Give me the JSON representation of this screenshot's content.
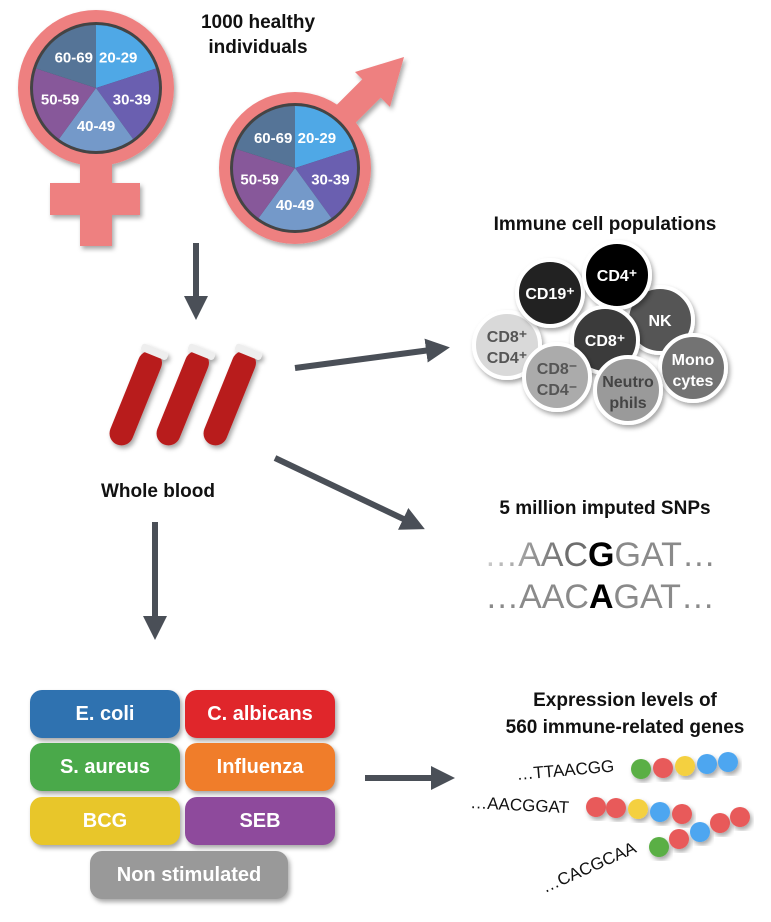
{
  "cohort": {
    "title_line1": "1000 healthy",
    "title_line2": "individuals",
    "age_groups": [
      "20-29",
      "30-39",
      "40-49",
      "50-59",
      "60-69"
    ],
    "age_colors": [
      "#4fa8e6",
      "#6a5fb0",
      "#7499c9",
      "#87589a",
      "#557497"
    ],
    "symbol_color": "#ee8080"
  },
  "blood": {
    "label": "Whole blood"
  },
  "cells": {
    "title": "Immune cell populations",
    "items": [
      {
        "l1": "CD8⁺",
        "l2": "CD4⁺",
        "color": "#d9d9d9",
        "text": "#555"
      },
      {
        "l1": "CD19⁺",
        "l2": "",
        "color": "#222222",
        "text": "#fff"
      },
      {
        "l1": "NK",
        "l2": "",
        "color": "#555555",
        "text": "#fff"
      },
      {
        "l1": "CD4⁺",
        "l2": "",
        "color": "#000000",
        "text": "#fff"
      },
      {
        "l1": "CD8⁺",
        "l2": "",
        "color": "#3a3a3a",
        "text": "#fff"
      },
      {
        "l1": "Mono",
        "l2": "cytes",
        "color": "#737373",
        "text": "#fff"
      },
      {
        "l1": "CD8⁻",
        "l2": "CD4⁻",
        "color": "#ababab",
        "text": "#555"
      },
      {
        "l1": "Neutro",
        "l2": "phils",
        "color": "#9a9a9a",
        "text": "#444"
      }
    ]
  },
  "snps": {
    "title": "5 million imputed SNPs",
    "seq1": {
      "pre": "…AAC",
      "allele": "G",
      "post": "GAT…"
    },
    "seq2": {
      "pre": "…AAC",
      "allele": "A",
      "post": "GAT…"
    }
  },
  "stimuli": [
    {
      "label": "E. coli",
      "color": "#2f72b0"
    },
    {
      "label": "C. albicans",
      "color": "#e0262b"
    },
    {
      "label": "S. aureus",
      "color": "#4aa94a"
    },
    {
      "label": "Influenza",
      "color": "#f07d2a"
    },
    {
      "label": "BCG",
      "color": "#e8c62a"
    },
    {
      "label": "SEB",
      "color": "#8e4a9c"
    },
    {
      "label": "Non stimulated",
      "color": "#999999"
    }
  ],
  "expression": {
    "title_line1": "Expression levels of",
    "title_line2": "560 immune-related genes",
    "rows": [
      {
        "seq": "…TTAACGG",
        "beads": [
          "green",
          "red",
          "yellow",
          "blue",
          "blue"
        ]
      },
      {
        "seq": "…AACGGAT",
        "beads": [
          "red",
          "red",
          "yellow",
          "blue",
          "red"
        ]
      },
      {
        "seq": "…CACGCAA",
        "beads": [
          "green",
          "red",
          "blue",
          "red",
          "red"
        ]
      }
    ],
    "bead_colors": {
      "green": "#5aaf44",
      "red": "#e85a5a",
      "yellow": "#f4d03f",
      "blue": "#4da6f0"
    }
  }
}
